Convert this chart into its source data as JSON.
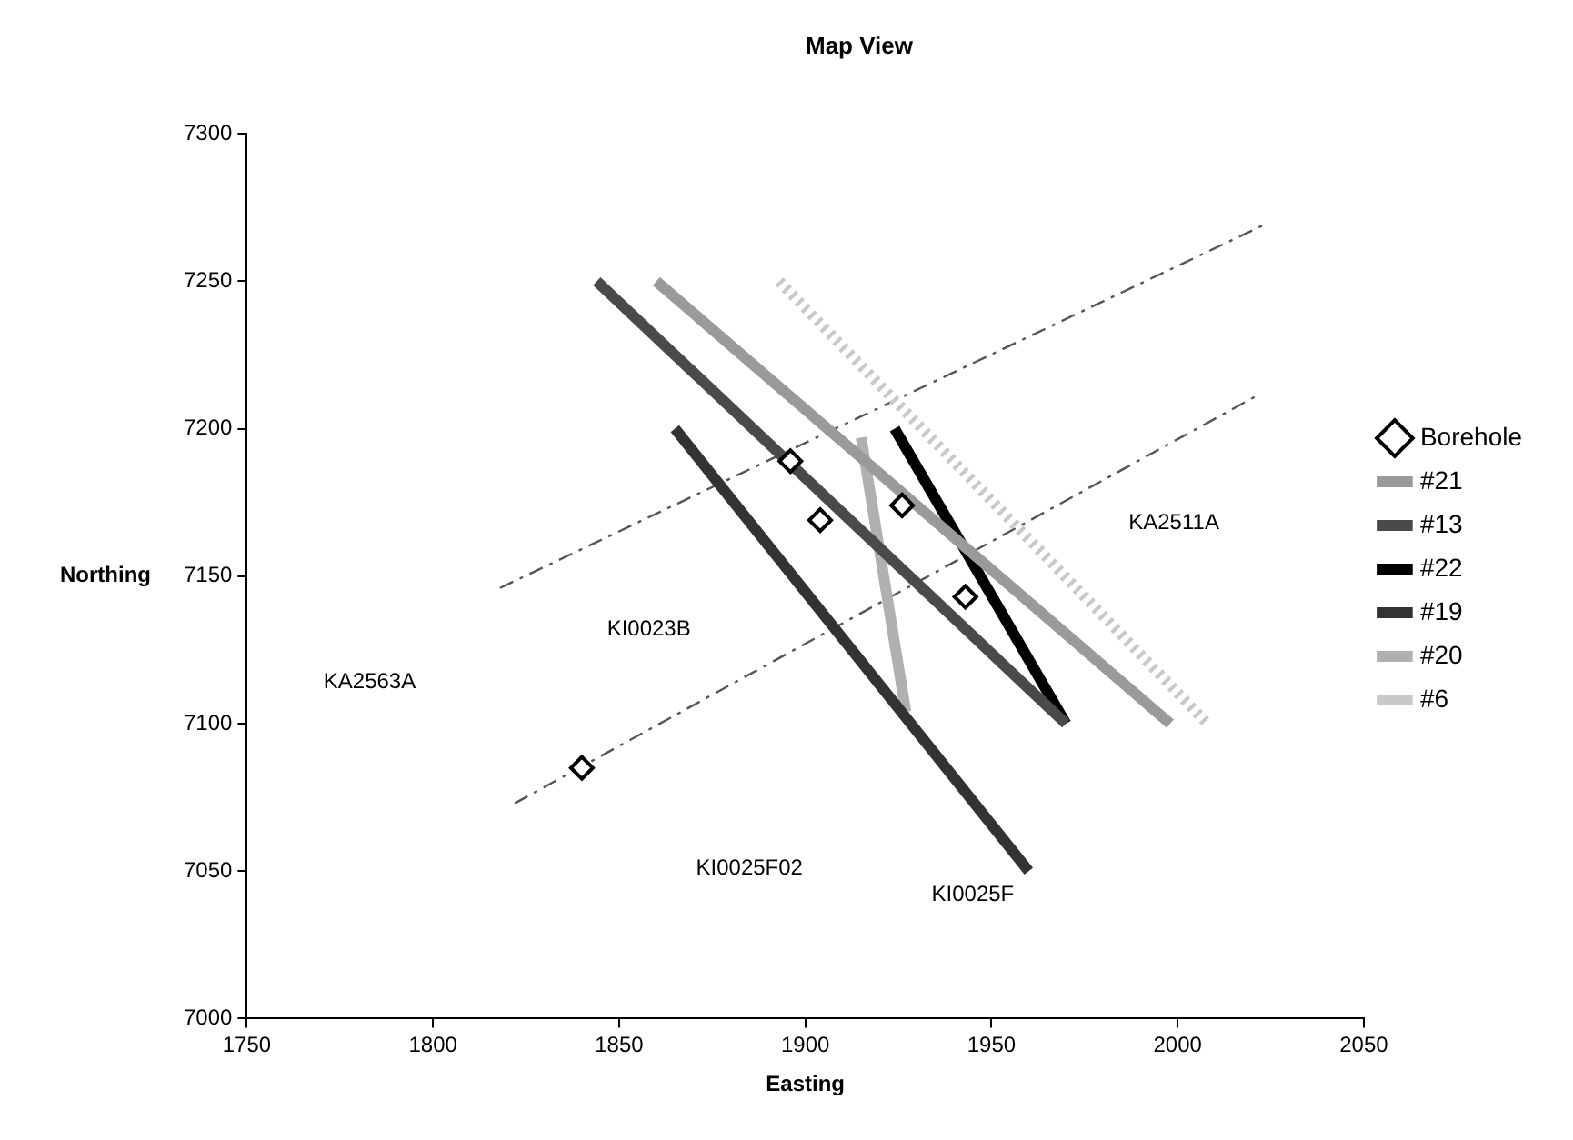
{
  "chart_data": {
    "type": "line",
    "title": "Map View",
    "xlabel": "Easting",
    "ylabel": "Northing",
    "xlim": [
      1750,
      2050
    ],
    "xticks": [
      1750,
      1800,
      1850,
      1900,
      1950,
      2000,
      2050
    ],
    "ylim": [
      7000,
      7300
    ],
    "yticks": [
      7000,
      7050,
      7100,
      7150,
      7200,
      7250,
      7300
    ],
    "grid": false,
    "legend": "right",
    "series": [
      {
        "name": "Borehole",
        "type": "scatter",
        "marker": "diamond",
        "color": "#000000",
        "x": [
          1840,
          1896,
          1904,
          1926,
          1943
        ],
        "values": [
          7085,
          7189,
          7169,
          7174,
          7143
        ]
      },
      {
        "name": "#21",
        "type": "line",
        "color": "#9a9a9a",
        "x": [
          1860,
          1998
        ],
        "values": [
          7250,
          7100
        ]
      },
      {
        "name": "#13",
        "type": "line",
        "color": "#4a4a4a",
        "x": [
          1844,
          1970
        ],
        "values": [
          7250,
          7100
        ]
      },
      {
        "name": "#22",
        "type": "line",
        "color": "#000000",
        "x": [
          1924,
          1970
        ],
        "values": [
          7200,
          7100
        ]
      },
      {
        "name": "#19",
        "type": "line",
        "color": "#333333",
        "x": [
          1865,
          1960
        ],
        "values": [
          7200,
          7050
        ]
      },
      {
        "name": "#20",
        "type": "line",
        "color": "#b0b0b0",
        "x": [
          1915,
          1927
        ],
        "values": [
          7197,
          7104
        ]
      },
      {
        "name": "#6",
        "type": "line",
        "color": "#c8c8c8",
        "line_style": "dotted",
        "x": [
          1893,
          2008
        ],
        "values": [
          7250,
          7100
        ]
      },
      {
        "type": "line",
        "color": "#555555",
        "line_style": "dashed",
        "x": [
          1822,
          2021
        ],
        "values": [
          7073,
          7211
        ]
      },
      {
        "type": "line",
        "color": "#555555",
        "line_style": "dashed",
        "x": [
          1818,
          2023
        ],
        "values": [
          7146,
          7269
        ]
      }
    ],
    "annotations": [
      "KA2563A",
      "KI0023B",
      "KI0025F02",
      "KI0025F",
      "KA2511A"
    ]
  }
}
